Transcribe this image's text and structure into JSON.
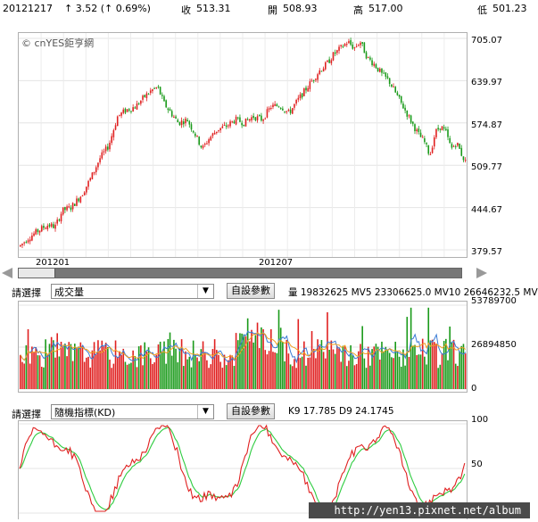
{
  "header": {
    "date": "20121217",
    "change": "↑ 3.52 (↑ 0.69%)",
    "close_label": "收",
    "close_value": "513.31",
    "open_label": "開",
    "open_value": "508.93",
    "high_label": "高",
    "high_value": "517.00",
    "low_label": "低",
    "low_value": "501.23"
  },
  "watermark": "© cnYES鉅亨網",
  "price_axis": [
    "705.07",
    "639.97",
    "574.87",
    "509.77",
    "444.67",
    "379.57"
  ],
  "date_axis": [
    "201201",
    "201207"
  ],
  "volume_panel": {
    "select_prefix": "請選擇",
    "selected": "成交量",
    "button": "自設參數",
    "info": "量 19832625   MV5 23306625.0   MV10 26646232.5   MV",
    "axis": [
      "53789700",
      "26894850",
      "0"
    ]
  },
  "kd_panel": {
    "select_prefix": "請選擇",
    "selected": "隨機指標(KD)",
    "button": "自設參數",
    "info": "K9 17.785   D9 24.1745",
    "axis": [
      "100",
      "50"
    ]
  },
  "footer": "http://yen13.pixnet.net/album",
  "colors": {
    "up": "#e02020",
    "down": "#1a9a1a",
    "ma5": "#3a7bd5",
    "ma10": "#f0a020",
    "k": "#e02020",
    "d": "#2ecc40"
  },
  "chart_data": {
    "type": "candlestick",
    "price_range": [
      379.57,
      705.07
    ],
    "volume_range": [
      0,
      53789700
    ],
    "kd_range": [
      0,
      100
    ],
    "last": {
      "date": "20121217",
      "open": 508.93,
      "high": 517.0,
      "low": 501.23,
      "close": 513.31,
      "volume": 19832625,
      "mv5": 23306625.0,
      "mv10": 26646232.5,
      "k9": 17.785,
      "d9": 24.1745
    },
    "price_path": [
      [
        0,
        385
      ],
      [
        10,
        398
      ],
      [
        22,
        410
      ],
      [
        32,
        418
      ],
      [
        40,
        415
      ],
      [
        48,
        440
      ],
      [
        58,
        445
      ],
      [
        70,
        465
      ],
      [
        80,
        490
      ],
      [
        90,
        520
      ],
      [
        100,
        540
      ],
      [
        110,
        585
      ],
      [
        120,
        595
      ],
      [
        130,
        600
      ],
      [
        140,
        615
      ],
      [
        148,
        625
      ],
      [
        155,
        630
      ],
      [
        162,
        605
      ],
      [
        170,
        590
      ],
      [
        178,
        575
      ],
      [
        188,
        580
      ],
      [
        196,
        560
      ],
      [
        205,
        535
      ],
      [
        212,
        550
      ],
      [
        222,
        565
      ],
      [
        232,
        570
      ],
      [
        242,
        580
      ],
      [
        252,
        575
      ],
      [
        262,
        585
      ],
      [
        272,
        580
      ],
      [
        282,
        600
      ],
      [
        292,
        602
      ],
      [
        302,
        590
      ],
      [
        312,
        610
      ],
      [
        320,
        625
      ],
      [
        328,
        640
      ],
      [
        336,
        655
      ],
      [
        344,
        665
      ],
      [
        352,
        680
      ],
      [
        360,
        690
      ],
      [
        368,
        700
      ],
      [
        375,
        690
      ],
      [
        382,
        700
      ],
      [
        390,
        675
      ],
      [
        398,
        665
      ],
      [
        406,
        650
      ],
      [
        414,
        640
      ],
      [
        422,
        620
      ],
      [
        430,
        600
      ],
      [
        438,
        580
      ],
      [
        446,
        560
      ],
      [
        454,
        545
      ],
      [
        460,
        525
      ],
      [
        466,
        560
      ],
      [
        472,
        570
      ],
      [
        478,
        560
      ],
      [
        484,
        535
      ],
      [
        490,
        545
      ],
      [
        496,
        525
      ],
      [
        501,
        512
      ]
    ]
  }
}
